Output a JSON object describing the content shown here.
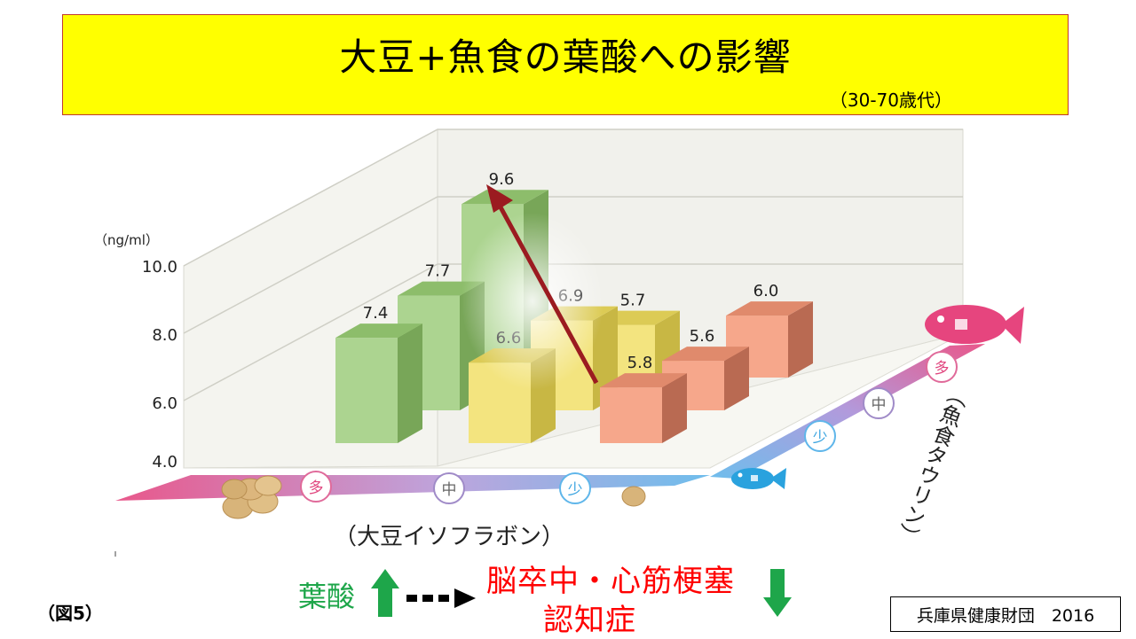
{
  "header": {
    "title": "大豆+魚食の葉酸への影響",
    "subtitle": "（30-70歳代）"
  },
  "chart_data": {
    "type": "bar",
    "unit_label": "（ng/ml）",
    "ylim": [
      4.0,
      10.0
    ],
    "y_ticks": [
      "10.0",
      "8.0",
      "6.0",
      "4.0"
    ],
    "x_axis_label": "（大豆イソフラボン）",
    "z_axis_label": "（魚食タウリン）",
    "x_levels": [
      "多",
      "中",
      "少"
    ],
    "z_levels": [
      "少",
      "中",
      "多"
    ],
    "series": [
      {
        "fish_level": "多",
        "values": [
          7.4,
          6.6,
          5.8
        ],
        "color": "#a9d38a"
      },
      {
        "fish_level": "中",
        "values": [
          7.7,
          6.9,
          5.6
        ],
        "color": "#f0e37a"
      },
      {
        "fish_level": "少",
        "values": [
          9.6,
          5.7,
          6.0
        ],
        "color": "#f3a085"
      }
    ],
    "bars": [
      {
        "value": 7.4,
        "label": "7.4"
      },
      {
        "value": 7.7,
        "label": "7.7"
      },
      {
        "value": 9.6,
        "label": "9.6"
      },
      {
        "value": 6.6,
        "label": "6.6"
      },
      {
        "value": 6.9,
        "label": "6.9"
      },
      {
        "value": 5.7,
        "label": "5.7"
      },
      {
        "value": 5.8,
        "label": "5.8"
      },
      {
        "value": 5.6,
        "label": "5.6"
      },
      {
        "value": 6.0,
        "label": "6.0"
      }
    ]
  },
  "footer": {
    "folate": "葉酸",
    "disease_line1": "脳卒中・心筋梗塞",
    "disease_line2": "認知症",
    "figure_label": "（図5）",
    "credit": "兵庫県健康財団　2016"
  },
  "colors": {
    "title_bg": "#ffff00",
    "green_arrow": "#1ea64a",
    "red_text": "#ff0000",
    "trend_arrow": "#9b1b20"
  }
}
